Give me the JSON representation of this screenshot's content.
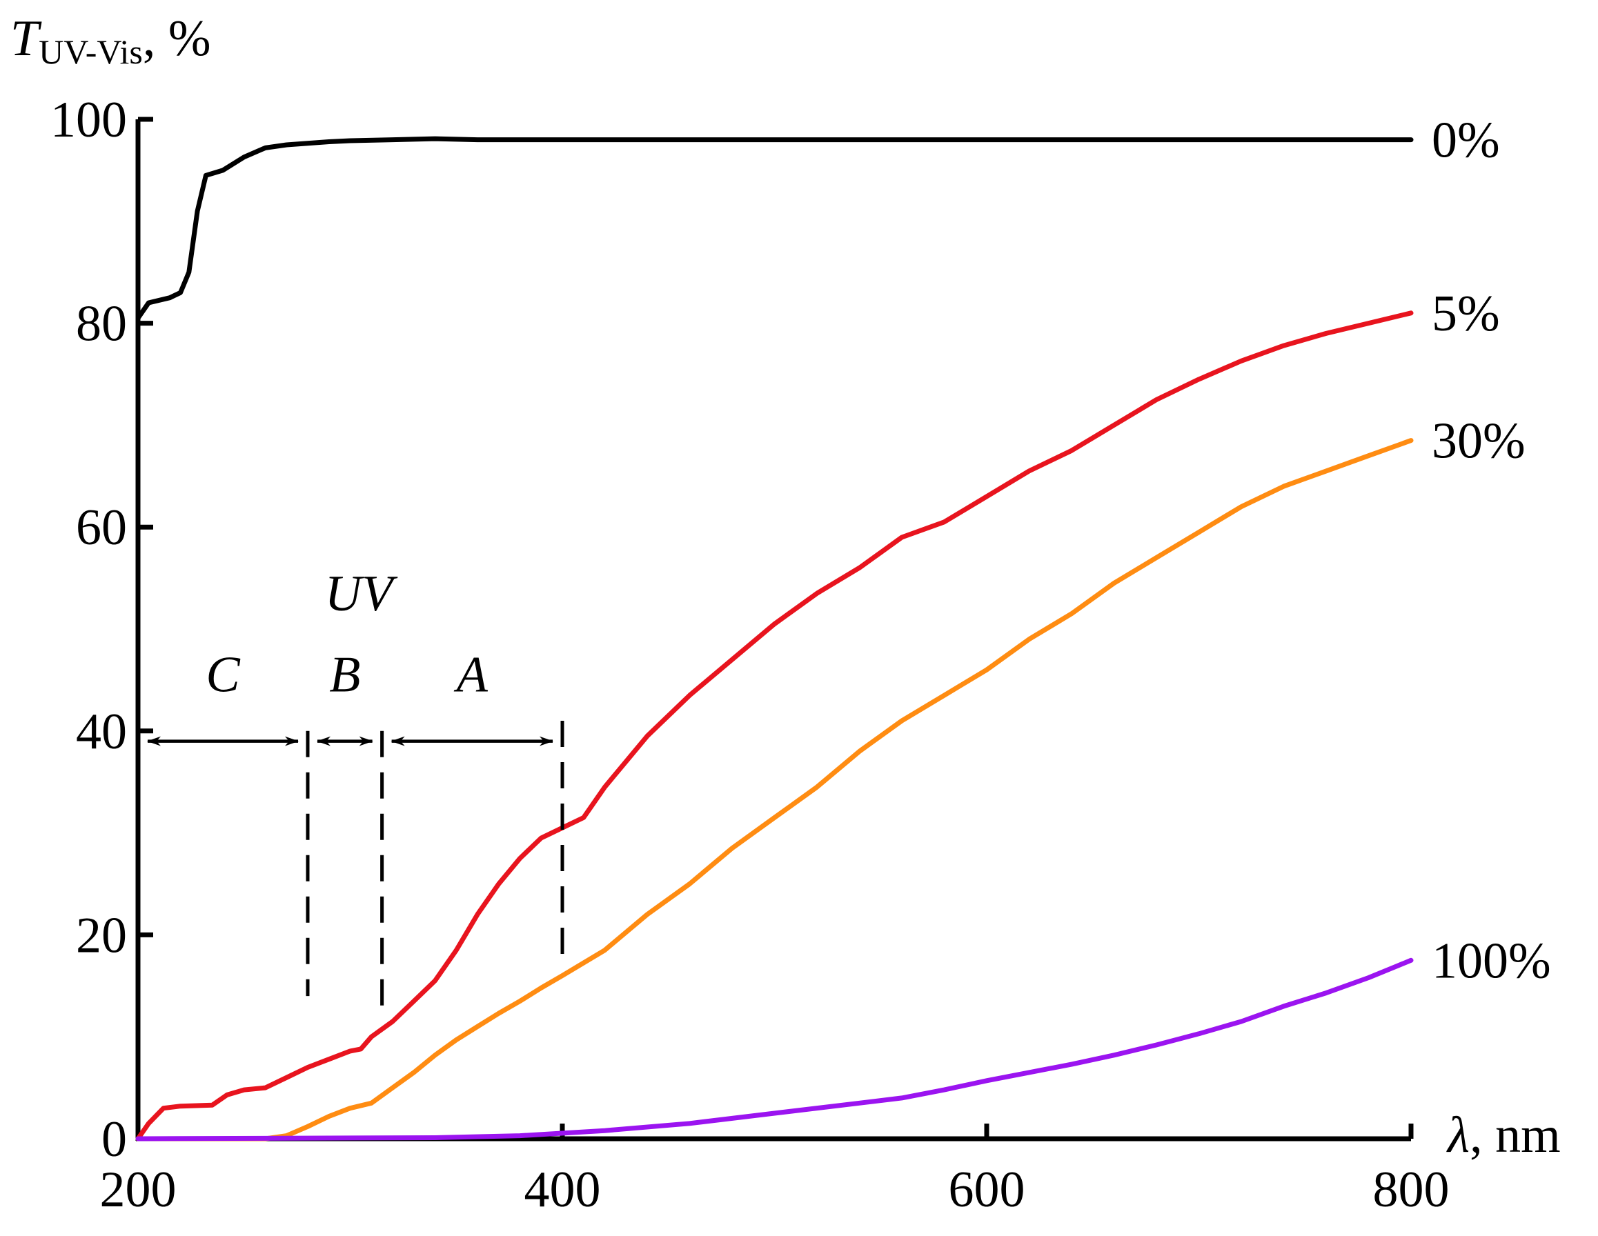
{
  "chart_data": {
    "type": "line",
    "title": "",
    "ylabel_symbol": "T",
    "ylabel_subscript": "UV-Vis",
    "ylabel_suffix": ", %",
    "xlabel_symbol": "λ",
    "xlabel_suffix": ", nm",
    "xlim": [
      200,
      800
    ],
    "ylim": [
      0,
      100
    ],
    "xticks": [
      "200",
      "400",
      "600",
      "800"
    ],
    "yticks": [
      "0",
      "20",
      "40",
      "60",
      "80",
      "100"
    ],
    "grid": false,
    "series": [
      {
        "name": "0%",
        "color": "#000000",
        "points": [
          [
            200,
            80.5
          ],
          [
            205,
            82
          ],
          [
            215,
            82.5
          ],
          [
            220,
            83
          ],
          [
            224,
            85
          ],
          [
            228,
            91
          ],
          [
            232,
            94.5
          ],
          [
            240,
            95
          ],
          [
            250,
            96.3
          ],
          [
            260,
            97.2
          ],
          [
            270,
            97.5
          ],
          [
            290,
            97.8
          ],
          [
            300,
            97.9
          ],
          [
            320,
            98
          ],
          [
            340,
            98.1
          ],
          [
            360,
            98
          ],
          [
            380,
            98
          ],
          [
            400,
            98
          ],
          [
            500,
            98
          ],
          [
            600,
            98
          ],
          [
            700,
            98
          ],
          [
            800,
            98
          ]
        ]
      },
      {
        "name": "5%",
        "color": "#e8141e",
        "points": [
          [
            200,
            0
          ],
          [
            205,
            1.5
          ],
          [
            212,
            3
          ],
          [
            220,
            3.2
          ],
          [
            235,
            3.3
          ],
          [
            242,
            4.3
          ],
          [
            250,
            4.8
          ],
          [
            260,
            5
          ],
          [
            270,
            6
          ],
          [
            280,
            7
          ],
          [
            290,
            7.8
          ],
          [
            300,
            8.6
          ],
          [
            305,
            8.8
          ],
          [
            310,
            10
          ],
          [
            320,
            11.5
          ],
          [
            330,
            13.5
          ],
          [
            340,
            15.5
          ],
          [
            350,
            18.5
          ],
          [
            360,
            22
          ],
          [
            370,
            25
          ],
          [
            380,
            27.5
          ],
          [
            390,
            29.5
          ],
          [
            400,
            30.5
          ],
          [
            410,
            31.5
          ],
          [
            420,
            34.5
          ],
          [
            440,
            39.5
          ],
          [
            460,
            43.5
          ],
          [
            480,
            47
          ],
          [
            500,
            50.5
          ],
          [
            520,
            53.5
          ],
          [
            540,
            56
          ],
          [
            560,
            59
          ],
          [
            580,
            60.5
          ],
          [
            600,
            63
          ],
          [
            620,
            65.5
          ],
          [
            640,
            67.5
          ],
          [
            660,
            70
          ],
          [
            680,
            72.5
          ],
          [
            700,
            74.5
          ],
          [
            720,
            76.3
          ],
          [
            740,
            77.8
          ],
          [
            760,
            79
          ],
          [
            780,
            80
          ],
          [
            800,
            81
          ]
        ]
      },
      {
        "name": "30%",
        "color": "#ff8c12",
        "points": [
          [
            200,
            0
          ],
          [
            260,
            0
          ],
          [
            270,
            0.3
          ],
          [
            280,
            1.2
          ],
          [
            290,
            2.2
          ],
          [
            300,
            3
          ],
          [
            310,
            3.5
          ],
          [
            320,
            5
          ],
          [
            330,
            6.5
          ],
          [
            340,
            8.2
          ],
          [
            350,
            9.7
          ],
          [
            360,
            11
          ],
          [
            370,
            12.3
          ],
          [
            380,
            13.5
          ],
          [
            390,
            14.8
          ],
          [
            400,
            16
          ],
          [
            420,
            18.5
          ],
          [
            440,
            22
          ],
          [
            460,
            25
          ],
          [
            480,
            28.5
          ],
          [
            500,
            31.5
          ],
          [
            520,
            34.5
          ],
          [
            540,
            38
          ],
          [
            560,
            41
          ],
          [
            580,
            43.5
          ],
          [
            600,
            46
          ],
          [
            620,
            49
          ],
          [
            640,
            51.5
          ],
          [
            660,
            54.5
          ],
          [
            680,
            57
          ],
          [
            700,
            59.5
          ],
          [
            720,
            62
          ],
          [
            740,
            64
          ],
          [
            760,
            65.5
          ],
          [
            780,
            67
          ],
          [
            800,
            68.5
          ]
        ]
      },
      {
        "name": "100%",
        "color": "#9b14f0",
        "points": [
          [
            200,
            0
          ],
          [
            340,
            0.1
          ],
          [
            380,
            0.3
          ],
          [
            420,
            0.8
          ],
          [
            460,
            1.5
          ],
          [
            500,
            2.5
          ],
          [
            540,
            3.5
          ],
          [
            560,
            4
          ],
          [
            580,
            4.8
          ],
          [
            600,
            5.7
          ],
          [
            620,
            6.5
          ],
          [
            640,
            7.3
          ],
          [
            660,
            8.2
          ],
          [
            680,
            9.2
          ],
          [
            700,
            10.3
          ],
          [
            720,
            11.5
          ],
          [
            740,
            13
          ],
          [
            760,
            14.3
          ],
          [
            780,
            15.8
          ],
          [
            800,
            17.5
          ]
        ]
      }
    ],
    "annotations": {
      "region_title": "UV",
      "regions": [
        {
          "label": "C",
          "from": 200,
          "to": 280
        },
        {
          "label": "B",
          "from": 280,
          "to": 315
        },
        {
          "label": "A",
          "from": 315,
          "to": 400
        }
      ],
      "arrow_level": 39,
      "boundaries": [
        {
          "x": 280,
          "y_from": 40,
          "y_to": 14
        },
        {
          "x": 315,
          "y_from": 40,
          "y_to": 13
        },
        {
          "x": 400,
          "y_from": 41,
          "y_to": 18
        }
      ]
    }
  }
}
